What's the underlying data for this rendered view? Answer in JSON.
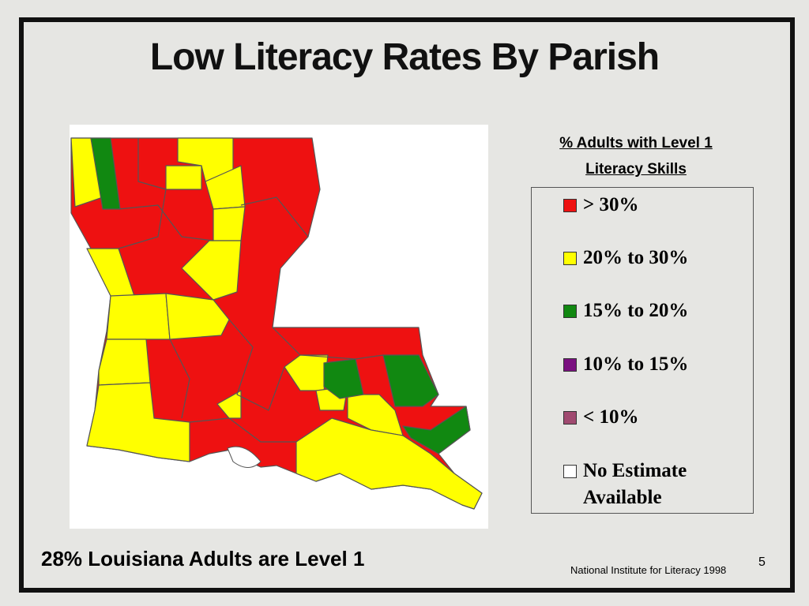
{
  "title": "Low Literacy Rates By Parish",
  "legend": {
    "title": [
      "% Adults with Level 1",
      "Literacy Skills"
    ],
    "items": [
      {
        "label": "> 30%",
        "color": "#ee1111"
      },
      {
        "label": "20% to 30%",
        "color": "#ffff00"
      },
      {
        "label": "15% to 20%",
        "color": "#118811"
      },
      {
        "label": "10% to 15%",
        "color": "#7a1080"
      },
      {
        "label": "< 10%",
        "color": "#a04a70"
      },
      {
        "label": "No Estimate Available",
        "color": "#ffffff"
      }
    ]
  },
  "footnote": "28% Louisiana Adults are Level 1",
  "source": "National Institute for Literacy 1998",
  "slide_number": "5"
}
